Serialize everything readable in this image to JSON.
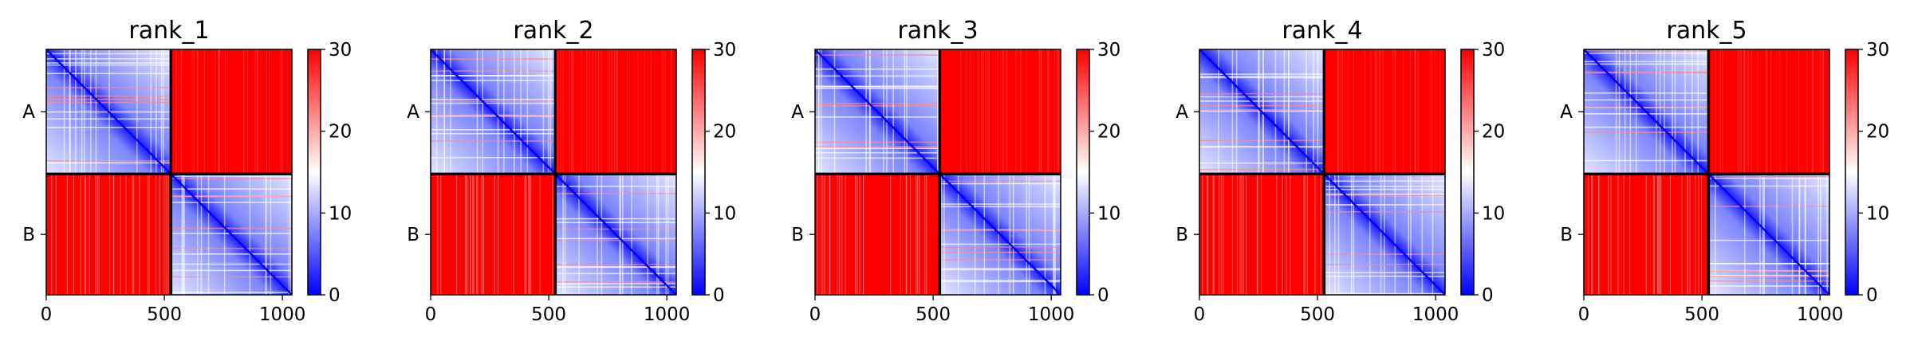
{
  "chart_data": [
    {
      "type": "heatmap",
      "title": "rank_1",
      "x_ticks": [
        0,
        500,
        1000
      ],
      "y_tick_labels": [
        "A",
        "B"
      ],
      "chain_boundary": 528,
      "extent": 1040,
      "colorbar": {
        "vmin": 0,
        "vmax": 30,
        "ticks": [
          0,
          10,
          20,
          30
        ],
        "colors": [
          "#0000ff",
          "#ffffff",
          "#ff0000"
        ]
      },
      "blocks": [
        {
          "rows": "A",
          "cols": "A",
          "level": "low (blue diagonal, mixed off-diagonal)"
        },
        {
          "rows": "A",
          "cols": "B",
          "level": 30
        },
        {
          "rows": "B",
          "cols": "A",
          "level": 30
        },
        {
          "rows": "B",
          "cols": "B",
          "level": "low (blue diagonal)"
        }
      ]
    },
    {
      "type": "heatmap",
      "title": "rank_2",
      "x_ticks": [
        0,
        500,
        1000
      ],
      "y_tick_labels": [
        "A",
        "B"
      ],
      "chain_boundary": 528,
      "extent": 1040,
      "colorbar": {
        "vmin": 0,
        "vmax": 30,
        "ticks": [
          0,
          10,
          20,
          30
        ],
        "colors": [
          "#0000ff",
          "#ffffff",
          "#ff0000"
        ]
      },
      "blocks": [
        {
          "rows": "A",
          "cols": "A",
          "level": "low (blue diagonal, mixed off-diagonal)"
        },
        {
          "rows": "A",
          "cols": "B",
          "level": 30
        },
        {
          "rows": "B",
          "cols": "A",
          "level": 30
        },
        {
          "rows": "B",
          "cols": "B",
          "level": "low (blue diagonal)"
        }
      ]
    },
    {
      "type": "heatmap",
      "title": "rank_3",
      "x_ticks": [
        0,
        500,
        1000
      ],
      "y_tick_labels": [
        "A",
        "B"
      ],
      "chain_boundary": 528,
      "extent": 1040,
      "colorbar": {
        "vmin": 0,
        "vmax": 30,
        "ticks": [
          0,
          10,
          20,
          30
        ],
        "colors": [
          "#0000ff",
          "#ffffff",
          "#ff0000"
        ]
      },
      "blocks": [
        {
          "rows": "A",
          "cols": "A",
          "level": "low (blue diagonal, mixed off-diagonal)"
        },
        {
          "rows": "A",
          "cols": "B",
          "level": 30
        },
        {
          "rows": "B",
          "cols": "A",
          "level": 30
        },
        {
          "rows": "B",
          "cols": "B",
          "level": "low (blue diagonal)"
        }
      ]
    },
    {
      "type": "heatmap",
      "title": "rank_4",
      "x_ticks": [
        0,
        500,
        1000
      ],
      "y_tick_labels": [
        "A",
        "B"
      ],
      "chain_boundary": 528,
      "extent": 1040,
      "colorbar": {
        "vmin": 0,
        "vmax": 30,
        "ticks": [
          0,
          10,
          20,
          30
        ],
        "colors": [
          "#0000ff",
          "#ffffff",
          "#ff0000"
        ]
      },
      "blocks": [
        {
          "rows": "A",
          "cols": "A",
          "level": "low (blue diagonal, mixed off-diagonal)"
        },
        {
          "rows": "A",
          "cols": "B",
          "level": 30
        },
        {
          "rows": "B",
          "cols": "A",
          "level": 30
        },
        {
          "rows": "B",
          "cols": "B",
          "level": "low (blue diagonal)"
        }
      ]
    },
    {
      "type": "heatmap",
      "title": "rank_5",
      "x_ticks": [
        0,
        500,
        1000
      ],
      "y_tick_labels": [
        "A",
        "B"
      ],
      "chain_boundary": 528,
      "extent": 1040,
      "colorbar": {
        "vmin": 0,
        "vmax": 30,
        "ticks": [
          0,
          10,
          20,
          30
        ],
        "colors": [
          "#0000ff",
          "#ffffff",
          "#ff0000"
        ]
      },
      "blocks": [
        {
          "rows": "A",
          "cols": "A",
          "level": "low (blue diagonal, mixed off-diagonal)"
        },
        {
          "rows": "A",
          "cols": "B",
          "level": 30
        },
        {
          "rows": "B",
          "cols": "A",
          "level": 30
        },
        {
          "rows": "B",
          "cols": "B",
          "level": "low (blue diagonal)"
        }
      ]
    }
  ]
}
